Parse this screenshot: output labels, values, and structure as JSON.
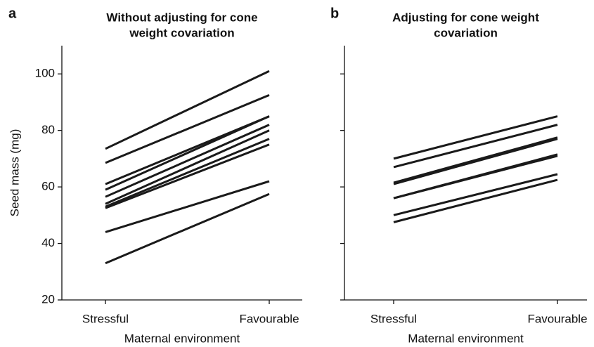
{
  "chart_data": [
    {
      "type": "line",
      "panel": "a",
      "title": [
        "Without adjusting for cone",
        "weight covariation"
      ],
      "xlabel": "Maternal environment",
      "ylabel": "Seed mass (mg)",
      "categories": [
        "Stressful",
        "Favourable"
      ],
      "ylim": [
        20,
        110
      ],
      "yticks": [
        20,
        40,
        60,
        80,
        100
      ],
      "color": "#1a1a1a",
      "series": [
        {
          "values": [
            73.5,
            101
          ]
        },
        {
          "values": [
            68.5,
            92.5
          ]
        },
        {
          "values": [
            61,
            85
          ]
        },
        {
          "values": [
            59,
            85
          ]
        },
        {
          "values": [
            56.5,
            82
          ]
        },
        {
          "values": [
            54,
            80
          ]
        },
        {
          "values": [
            53,
            77
          ]
        },
        {
          "values": [
            52.5,
            75
          ]
        },
        {
          "values": [
            44,
            62
          ]
        },
        {
          "values": [
            33,
            57.5
          ]
        }
      ]
    },
    {
      "type": "line",
      "panel": "b",
      "title": [
        "Adjusting for cone weight",
        "covariation"
      ],
      "xlabel": "Maternal environment",
      "categories": [
        "Stressful",
        "Favourable"
      ],
      "ylim": [
        20,
        110
      ],
      "yticks": [
        20,
        40,
        60,
        80,
        100
      ],
      "color": "#1a1a1a",
      "series": [
        {
          "values": [
            70,
            85
          ]
        },
        {
          "values": [
            67,
            82
          ]
        },
        {
          "values": [
            61.5,
            77.5
          ]
        },
        {
          "values": [
            61,
            77
          ]
        },
        {
          "values": [
            56,
            71.5
          ]
        },
        {
          "values": [
            56,
            71
          ]
        },
        {
          "values": [
            50,
            64.5
          ]
        },
        {
          "values": [
            47.5,
            62.5
          ]
        }
      ]
    }
  ]
}
